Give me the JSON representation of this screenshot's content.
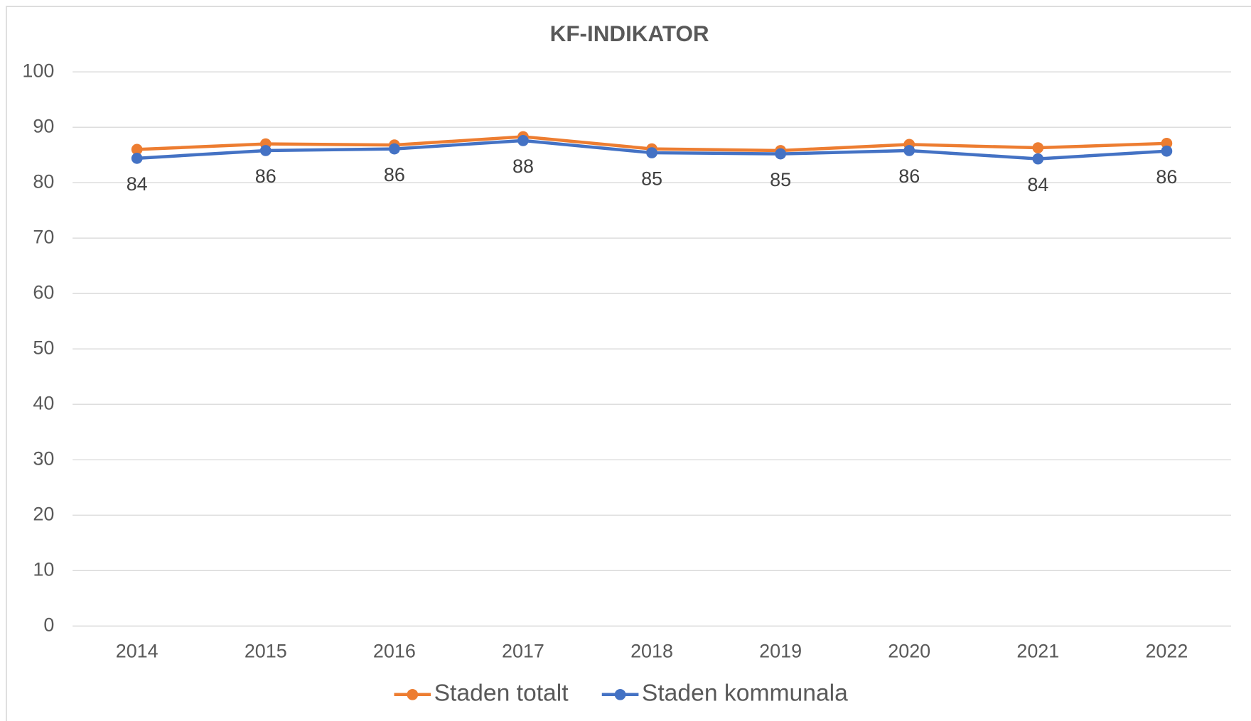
{
  "chart_data": {
    "type": "line",
    "title": "KF-INDIKATOR",
    "categories": [
      "2014",
      "2015",
      "2016",
      "2017",
      "2018",
      "2019",
      "2020",
      "2021",
      "2022"
    ],
    "series": [
      {
        "name": "Staden totalt",
        "color": "#ed7d31",
        "values": [
          86,
          87,
          86.8,
          88.3,
          86.1,
          85.8,
          86.9,
          86.3,
          87.1
        ]
      },
      {
        "name": "Staden kommunala",
        "color": "#4472c4",
        "values": [
          84.4,
          85.8,
          86.1,
          87.6,
          85.4,
          85.2,
          85.8,
          84.3,
          85.7
        ],
        "value_labels": [
          "84",
          "86",
          "86",
          "88",
          "85",
          "85",
          "86",
          "84",
          "86"
        ]
      }
    ],
    "ylim": [
      0,
      100
    ],
    "yticks": [
      0,
      10,
      20,
      30,
      40,
      50,
      60,
      70,
      80,
      90,
      100
    ],
    "grid": true,
    "legend": "bottom"
  }
}
